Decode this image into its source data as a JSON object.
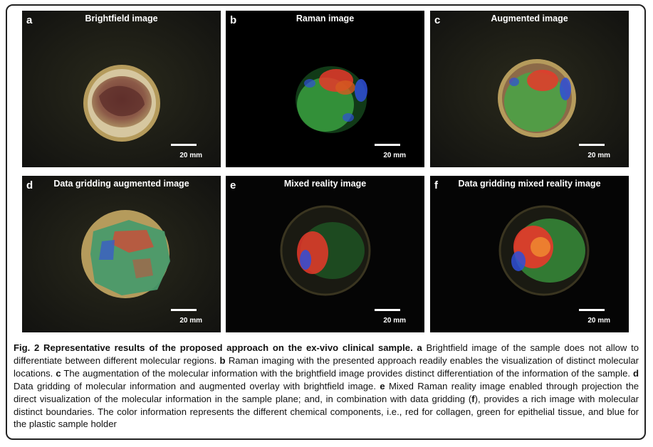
{
  "panels": [
    {
      "id": "a",
      "label": "a",
      "title": "Brightfield image",
      "scale": "20 mm"
    },
    {
      "id": "b",
      "label": "b",
      "title": "Raman image",
      "scale": "20 mm"
    },
    {
      "id": "c",
      "label": "c",
      "title": "Augmented image",
      "scale": "20 mm"
    },
    {
      "id": "d",
      "label": "d",
      "title": "Data gridding augmented image",
      "scale": "20 mm"
    },
    {
      "id": "e",
      "label": "e",
      "title": "Mixed reality image",
      "scale": "20 mm"
    },
    {
      "id": "f",
      "label": "f",
      "title": "Data gridding mixed reality image",
      "scale": "20 mm"
    }
  ],
  "caption": {
    "heading": "Fig. 2 Representative results of the proposed approach on the ex-vivo clinical sample.",
    "a_label": "a",
    "a_text": "Brightfield image of the sample does not allow to differentiate between different molecular regions.",
    "b_label": "b",
    "b_text": "Raman imaging with the presented approach readily enables the visualization of distinct molecular locations.",
    "c_label": "c",
    "c_text": "The augmentation of the molecular information with the brightfield image provides distinct differentiation of the information of the sample.",
    "d_label": "d",
    "d_text": "Data gridding of molecular information and augmented overlay with brightfield image.",
    "e_label": "e",
    "e_text": "Mixed Raman reality image enabled through projection the direct visualization of the molecular information in the sample plane; and, in combination with data gridding (",
    "f_label": "f",
    "f_text": "), provides a rich image with molecular distinct boundaries. The color information represents the different chemical components, i.e., red for collagen, green for epithelial tissue, and blue for the plastic sample holder"
  },
  "colors": {
    "collagen": "#e8382a",
    "epithelial": "#3fae45",
    "holder": "#2f4fd8"
  }
}
